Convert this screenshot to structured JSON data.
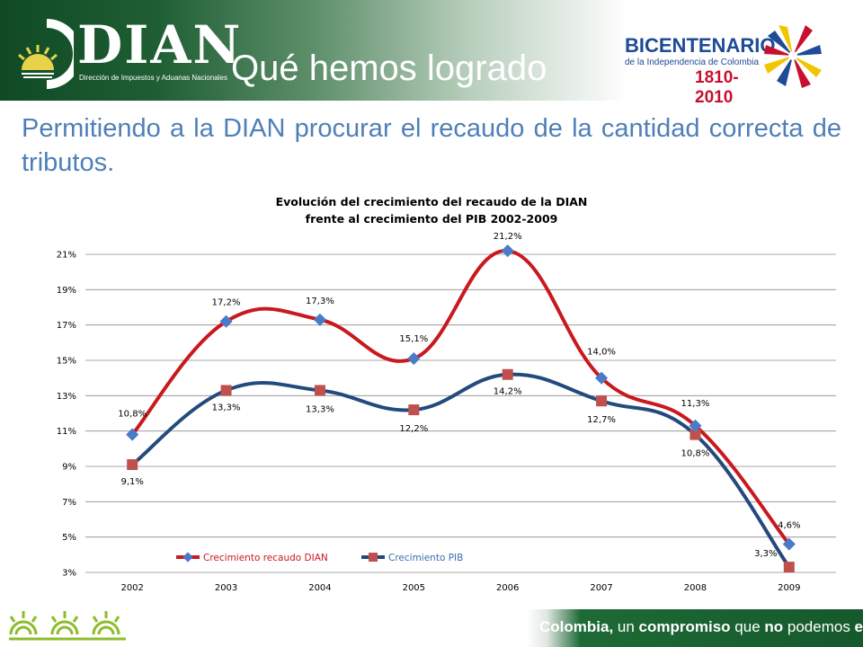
{
  "header": {
    "logo_text": "DIAN",
    "logo_subtitle": "Dirección de Impuestos y Aduanas Nacionales",
    "title": "Qué hemos logrado",
    "partner_title": "BICENTENARIO",
    "partner_subtitle": "de la Independencia de Colombia",
    "partner_years": "1810-2010"
  },
  "subtitle": "Permitiendo a la DIAN procurar el recaudo de la cantidad correcta de tributos.",
  "footer": {
    "slogan_lead": "Colombia,",
    "slogan_mid": " un ",
    "slogan_b1": "compromiso",
    "slogan_mid2": " que ",
    "slogan_b2": "no",
    "slogan_mid3": " podemos ",
    "slogan_b3": "evadir."
  },
  "colors": {
    "dian_series": "#c8191e",
    "pib_series": "#234a7d",
    "dian_marker": "#4a7bc8",
    "pib_marker": "#c0504d",
    "accent_green": "#1e6a36"
  },
  "chart_data": {
    "type": "line",
    "title_line1": "Evolución del crecimiento del recaudo de la DIAN",
    "title_line2": "frente al crecimiento del PIB 2002-2009",
    "categories": [
      "2002",
      "2003",
      "2004",
      "2005",
      "2006",
      "2007",
      "2008",
      "2009"
    ],
    "series": [
      {
        "name": "Crecimiento recaudo DIAN",
        "values": [
          10.8,
          17.2,
          17.3,
          15.1,
          21.2,
          14.0,
          11.3,
          4.6
        ],
        "labels": [
          "10,8%",
          "17,2%",
          "17,3%",
          "15,1%",
          "21,2%",
          "14,0%",
          "11,3%",
          "4,6%"
        ]
      },
      {
        "name": "Crecimiento PIB",
        "values": [
          9.1,
          13.3,
          13.3,
          12.2,
          14.2,
          12.7,
          10.8,
          3.3
        ],
        "labels": [
          "9,1%",
          "13,3%",
          "13,3%",
          "12,2%",
          "14,2%",
          "12,7%",
          "10,8%",
          "3,3%"
        ]
      }
    ],
    "y_ticks": [
      3,
      5,
      7,
      9,
      11,
      13,
      15,
      17,
      19,
      21
    ],
    "y_tick_labels": [
      "3%",
      "5%",
      "7%",
      "9%",
      "11%",
      "13%",
      "15%",
      "17%",
      "19%",
      "21%"
    ],
    "ylim": [
      3,
      21
    ],
    "grid": true,
    "legend_position": "bottom-left-inside"
  }
}
